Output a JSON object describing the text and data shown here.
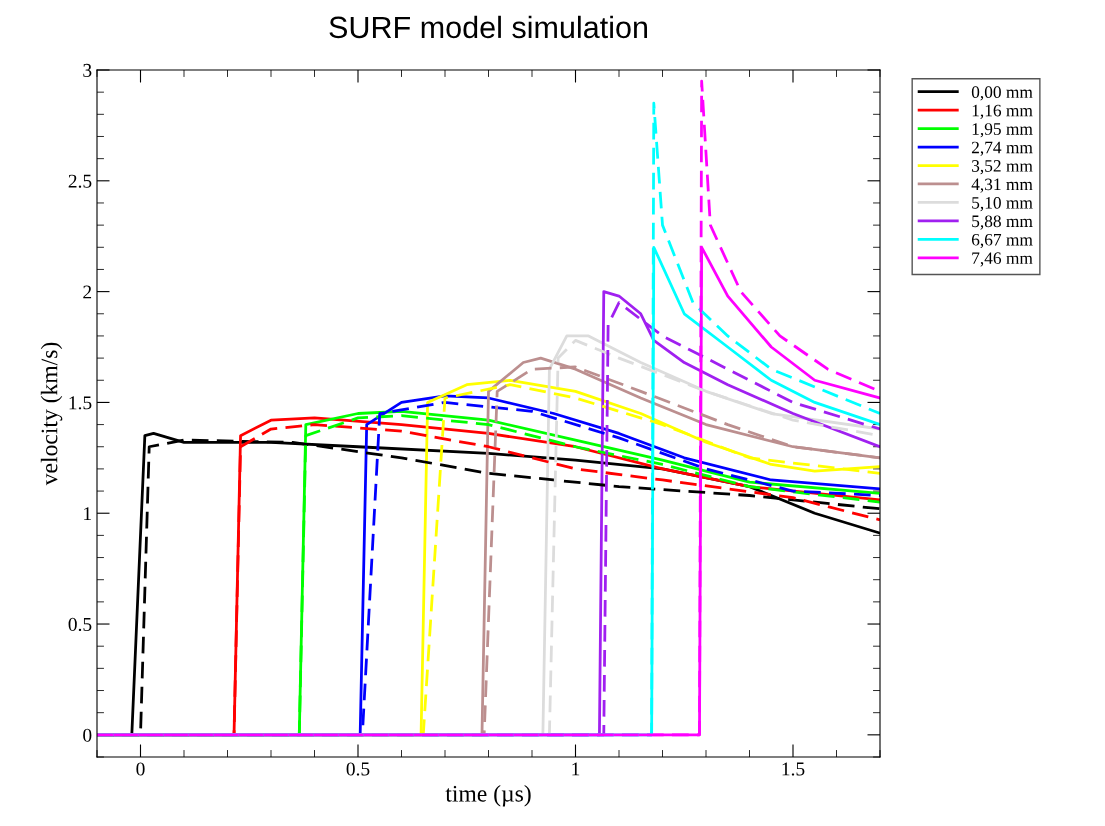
{
  "chart_data": {
    "type": "line",
    "title": "SURF model simulation",
    "xlabel": "time (µs)",
    "ylabel": "velocity (km/s)",
    "xlim": [
      -0.1,
      1.7
    ],
    "ylim": [
      -0.1,
      3
    ],
    "xticks": [
      0,
      0.5,
      1,
      1.5
    ],
    "yticks": [
      0,
      0.5,
      1,
      1.5,
      2,
      2.5,
      3
    ],
    "grid": false,
    "legend": "right",
    "series": [
      {
        "name": "0,00 mm",
        "color": "#000000",
        "line_style": "solid",
        "x": [
          -0.1,
          -0.02,
          0.01,
          0.03,
          0.1,
          0.3,
          0.5,
          0.8,
          1.0,
          1.2,
          1.4,
          1.55,
          1.7
        ],
        "values": [
          0,
          0,
          1.35,
          1.36,
          1.32,
          1.32,
          1.3,
          1.27,
          1.24,
          1.2,
          1.12,
          1.0,
          0.91
        ]
      },
      {
        "name": "1,16 mm",
        "color": "#ff0000",
        "line_style": "solid",
        "x": [
          -0.1,
          0.215,
          0.23,
          0.3,
          0.4,
          0.6,
          0.8,
          1.0,
          1.2,
          1.4,
          1.7
        ],
        "values": [
          0,
          0,
          1.35,
          1.42,
          1.43,
          1.4,
          1.36,
          1.3,
          1.2,
          1.12,
          1.06
        ]
      },
      {
        "name": "1,95 mm",
        "color": "#00ff00",
        "line_style": "solid",
        "x": [
          -0.1,
          0.365,
          0.38,
          0.5,
          0.6,
          0.8,
          1.0,
          1.2,
          1.4,
          1.7
        ],
        "values": [
          0,
          0,
          1.4,
          1.45,
          1.46,
          1.42,
          1.33,
          1.24,
          1.14,
          1.09
        ]
      },
      {
        "name": "2,74 mm",
        "color": "#0000ff",
        "line_style": "solid",
        "x": [
          -0.1,
          0.505,
          0.52,
          0.6,
          0.7,
          0.8,
          0.95,
          1.1,
          1.25,
          1.45,
          1.7
        ],
        "values": [
          0,
          0,
          1.4,
          1.5,
          1.53,
          1.52,
          1.45,
          1.36,
          1.25,
          1.15,
          1.11
        ]
      },
      {
        "name": "3,52 mm",
        "color": "#ffff00",
        "line_style": "solid",
        "x": [
          -0.1,
          0.645,
          0.66,
          0.75,
          0.85,
          1.0,
          1.15,
          1.3,
          1.45,
          1.55,
          1.7
        ],
        "values": [
          0,
          0,
          1.5,
          1.58,
          1.6,
          1.55,
          1.45,
          1.32,
          1.22,
          1.19,
          1.21
        ]
      },
      {
        "name": "4,31 mm",
        "color": "#bc8f8f",
        "line_style": "solid",
        "x": [
          -0.1,
          0.785,
          0.8,
          0.88,
          0.92,
          1.0,
          1.15,
          1.3,
          1.5,
          1.7
        ],
        "values": [
          0,
          0,
          1.55,
          1.68,
          1.7,
          1.65,
          1.52,
          1.4,
          1.3,
          1.25
        ]
      },
      {
        "name": "5,10 mm",
        "color": "#dcdcdc",
        "line_style": "solid",
        "x": [
          -0.1,
          0.925,
          0.94,
          0.98,
          1.03,
          1.15,
          1.3,
          1.45,
          1.7
        ],
        "values": [
          0,
          0,
          1.65,
          1.8,
          1.8,
          1.68,
          1.55,
          1.45,
          1.38
        ]
      },
      {
        "name": "5,88 mm",
        "color": "#a020f0",
        "line_style": "solid",
        "x": [
          -0.1,
          1.055,
          1.065,
          1.1,
          1.15,
          1.18,
          1.25,
          1.35,
          1.5,
          1.7
        ],
        "values": [
          0,
          0,
          2.0,
          1.98,
          1.9,
          1.78,
          1.68,
          1.58,
          1.45,
          1.3
        ]
      },
      {
        "name": "6,67 mm",
        "color": "#00ffff",
        "line_style": "solid",
        "x": [
          -0.1,
          1.175,
          1.18,
          1.25,
          1.35,
          1.45,
          1.55,
          1.7
        ],
        "values": [
          0,
          0,
          2.2,
          1.9,
          1.75,
          1.6,
          1.5,
          1.4
        ]
      },
      {
        "name": "7,46 mm",
        "color": "#ff00ff",
        "line_style": "solid",
        "x": [
          -0.1,
          1.285,
          1.29,
          1.35,
          1.45,
          1.55,
          1.7
        ],
        "values": [
          0,
          0,
          2.2,
          1.98,
          1.75,
          1.6,
          1.52
        ]
      },
      {
        "color": "#000000",
        "line_style": "dashed",
        "x": [
          -0.1,
          0.0,
          0.02,
          0.1,
          0.35,
          0.6,
          0.8,
          1.1,
          1.4,
          1.7
        ],
        "values": [
          0,
          0,
          1.3,
          1.33,
          1.32,
          1.25,
          1.18,
          1.12,
          1.08,
          1.02
        ]
      },
      {
        "color": "#ff0000",
        "line_style": "dashed",
        "x": [
          -0.1,
          0.215,
          0.23,
          0.3,
          0.4,
          0.6,
          0.8,
          1.0,
          1.2,
          1.5,
          1.7
        ],
        "values": [
          0,
          0,
          1.3,
          1.38,
          1.4,
          1.37,
          1.3,
          1.2,
          1.15,
          1.07,
          0.97
        ]
      },
      {
        "color": "#00ff00",
        "line_style": "dashed",
        "x": [
          -0.1,
          0.365,
          0.38,
          0.5,
          0.6,
          0.8,
          1.0,
          1.2,
          1.4,
          1.7
        ],
        "values": [
          0,
          0,
          1.35,
          1.43,
          1.44,
          1.4,
          1.3,
          1.22,
          1.12,
          1.05
        ]
      },
      {
        "color": "#0000ff",
        "line_style": "dashed",
        "x": [
          -0.1,
          0.51,
          0.55,
          0.7,
          0.9,
          1.1,
          1.3,
          1.5,
          1.7
        ],
        "values": [
          0,
          0,
          1.45,
          1.5,
          1.46,
          1.34,
          1.2,
          1.1,
          1.08
        ]
      },
      {
        "color": "#ffff00",
        "line_style": "dashed",
        "x": [
          -0.1,
          0.65,
          0.7,
          0.85,
          1.0,
          1.2,
          1.4,
          1.7
        ],
        "values": [
          0,
          0,
          1.52,
          1.58,
          1.52,
          1.4,
          1.25,
          1.18
        ]
      },
      {
        "color": "#bc8f8f",
        "line_style": "dashed",
        "x": [
          -0.1,
          0.79,
          0.82,
          0.9,
          1.0,
          1.15,
          1.35,
          1.5,
          1.7
        ],
        "values": [
          0,
          0,
          1.55,
          1.65,
          1.66,
          1.55,
          1.4,
          1.3,
          1.25
        ]
      },
      {
        "color": "#dcdcdc",
        "line_style": "dashed",
        "x": [
          -0.1,
          0.94,
          0.96,
          1.0,
          1.1,
          1.3,
          1.5,
          1.7
        ],
        "values": [
          0,
          0,
          1.7,
          1.78,
          1.7,
          1.55,
          1.42,
          1.35
        ]
      },
      {
        "color": "#a020f0",
        "line_style": "dashed",
        "x": [
          -0.1,
          1.065,
          1.075,
          1.1,
          1.2,
          1.35,
          1.5,
          1.7
        ],
        "values": [
          0,
          0,
          1.85,
          1.95,
          1.8,
          1.65,
          1.5,
          1.38
        ]
      },
      {
        "color": "#00ffff",
        "line_style": "dashed",
        "x": [
          -0.1,
          1.175,
          1.18,
          1.2,
          1.27,
          1.35,
          1.45,
          1.7
        ],
        "values": [
          0,
          0,
          2.85,
          2.3,
          1.95,
          1.8,
          1.65,
          1.45
        ]
      },
      {
        "color": "#ff00ff",
        "line_style": "dashed",
        "x": [
          -0.1,
          1.285,
          1.29,
          1.31,
          1.38,
          1.47,
          1.58,
          1.7
        ],
        "values": [
          0,
          0,
          2.95,
          2.3,
          2.0,
          1.8,
          1.65,
          1.55
        ]
      }
    ]
  }
}
